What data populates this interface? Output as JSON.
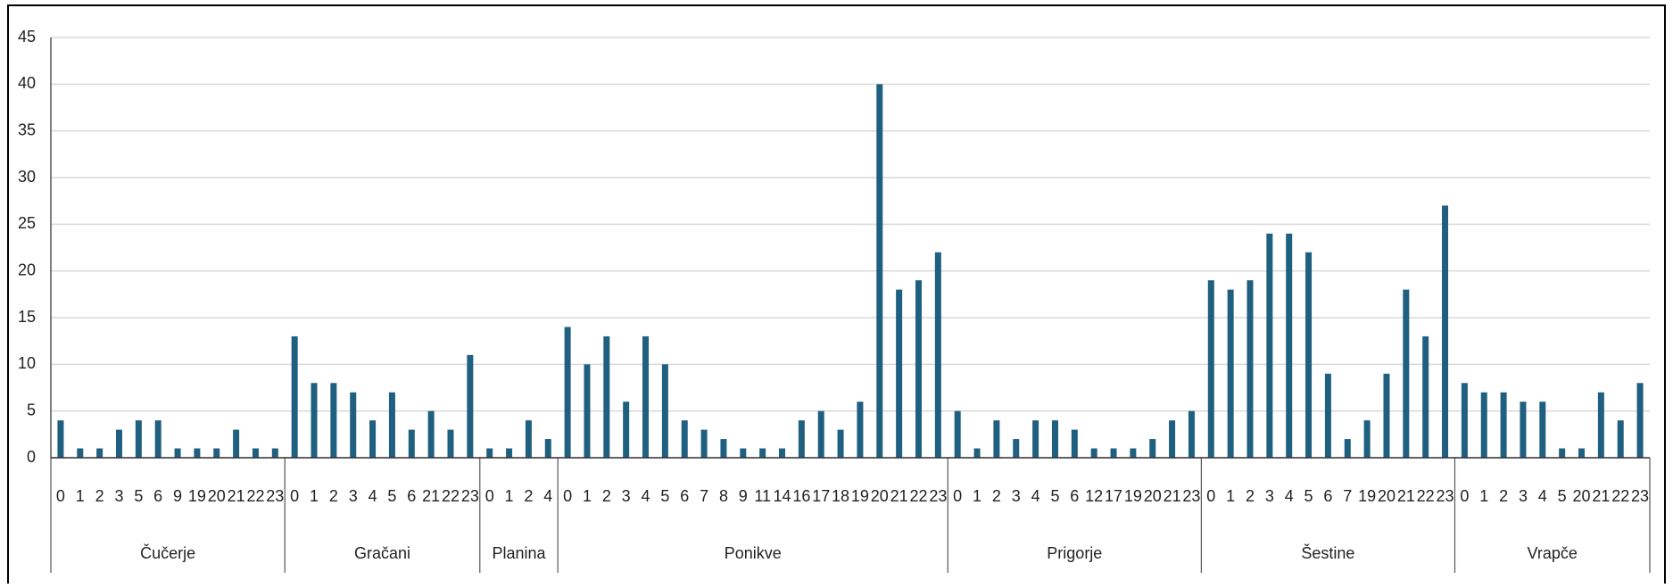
{
  "chart_data": {
    "type": "bar",
    "color": "#1f5f7f",
    "grid": true,
    "ylim": [
      0,
      45
    ],
    "yticks": [
      0,
      5,
      10,
      15,
      20,
      25,
      30,
      35,
      40,
      45
    ],
    "groups": [
      {
        "name": "Čučerje",
        "categories": [
          "0",
          "1",
          "2",
          "3",
          "5",
          "6",
          "9",
          "19",
          "20",
          "21",
          "22",
          "23"
        ],
        "values": [
          4,
          1,
          1,
          3,
          4,
          4,
          1,
          1,
          1,
          3,
          1,
          1
        ]
      },
      {
        "name": "Gračani",
        "categories": [
          "0",
          "1",
          "2",
          "3",
          "4",
          "5",
          "6",
          "21",
          "22",
          "23"
        ],
        "values": [
          13,
          8,
          8,
          7,
          4,
          7,
          3,
          5,
          3,
          11
        ]
      },
      {
        "name": "Planina",
        "categories": [
          "0",
          "1",
          "2",
          "4"
        ],
        "values": [
          1,
          1,
          4,
          2
        ]
      },
      {
        "name": "Ponikve",
        "categories": [
          "0",
          "1",
          "2",
          "3",
          "4",
          "5",
          "6",
          "7",
          "8",
          "9",
          "11",
          "14",
          "16",
          "17",
          "18",
          "19",
          "20",
          "21",
          "22",
          "23"
        ],
        "values": [
          14,
          10,
          13,
          6,
          13,
          10,
          4,
          3,
          2,
          1,
          1,
          1,
          4,
          5,
          3,
          6,
          40,
          18,
          19,
          22
        ]
      },
      {
        "name": "Prigorje",
        "categories": [
          "0",
          "1",
          "2",
          "3",
          "4",
          "5",
          "6",
          "12",
          "17",
          "19",
          "20",
          "21",
          "23"
        ],
        "values": [
          5,
          1,
          4,
          2,
          4,
          4,
          3,
          1,
          1,
          1,
          2,
          4,
          5
        ]
      },
      {
        "name": "Šestine",
        "categories": [
          "0",
          "1",
          "2",
          "3",
          "4",
          "5",
          "6",
          "7",
          "19",
          "20",
          "21",
          "22",
          "23"
        ],
        "values": [
          19,
          18,
          19,
          24,
          24,
          22,
          9,
          2,
          4,
          9,
          18,
          13,
          27
        ]
      },
      {
        "name": "Vrapče",
        "categories": [
          "0",
          "1",
          "2",
          "3",
          "4",
          "5",
          "20",
          "21",
          "22",
          "23"
        ],
        "values": [
          8,
          7,
          7,
          6,
          6,
          1,
          1,
          7,
          4,
          8
        ]
      }
    ]
  }
}
